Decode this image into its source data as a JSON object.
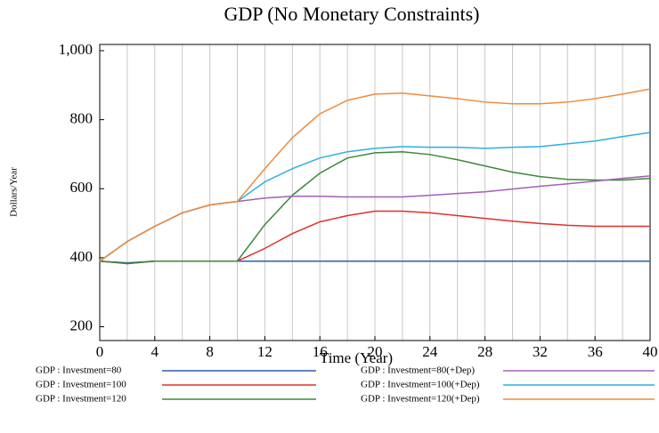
{
  "chart_data": {
    "type": "line",
    "title": "GDP (No Monetary Constraints)",
    "x_label": "Time (Year)",
    "y_label": "Dollars/Year",
    "x": [
      0,
      2,
      4,
      6,
      8,
      10,
      12,
      14,
      16,
      18,
      20,
      22,
      24,
      26,
      28,
      30,
      32,
      34,
      36,
      38,
      40
    ],
    "xlim": [
      0,
      40
    ],
    "xticks": [
      0,
      4,
      8,
      12,
      16,
      20,
      24,
      28,
      32,
      36,
      40
    ],
    "ylim": [
      160,
      1018
    ],
    "yticks": [
      200,
      400,
      600,
      800,
      {
        "value": 1000,
        "label": "1,000"
      }
    ],
    "grid": true,
    "series": [
      {
        "name": "GDP : Investment=80",
        "color": "#2e5fa8",
        "values": [
          390,
          385,
          390,
          390,
          390,
          390,
          390,
          390,
          390,
          390,
          390,
          390,
          390,
          390,
          390,
          390,
          390,
          390,
          390,
          390,
          390
        ]
      },
      {
        "name": "GDP : Investment=100",
        "color": "#e0302b",
        "values": [
          390,
          383,
          390,
          390,
          390,
          390,
          427,
          470,
          504,
          522,
          535,
          535,
          530,
          522,
          514,
          506,
          499,
          494,
          491,
          491,
          491
        ]
      },
      {
        "name": "GDP : Investment=120",
        "color": "#3a8a3a",
        "values": [
          390,
          383,
          390,
          390,
          390,
          390,
          496,
          581,
          645,
          689,
          704,
          707,
          699,
          684,
          666,
          648,
          635,
          627,
          625,
          625,
          630
        ]
      },
      {
        "name": "GDP : Investment=80(+Dep)",
        "color": "#a35fb5",
        "values": [
          390,
          447,
          491,
          530,
          553,
          563,
          573,
          578,
          578,
          576,
          576,
          576,
          581,
          586,
          591,
          599,
          607,
          614,
          622,
          630,
          637
        ]
      },
      {
        "name": "GDP : Investment=100(+Dep)",
        "color": "#2bb0e0",
        "values": [
          390,
          447,
          491,
          530,
          553,
          563,
          620,
          658,
          689,
          707,
          717,
          722,
          720,
          720,
          717,
          720,
          722,
          730,
          738,
          751,
          763
        ]
      },
      {
        "name": "GDP : Investment=120(+Dep)",
        "color": "#f08a3a",
        "values": [
          390,
          447,
          491,
          530,
          553,
          563,
          658,
          748,
          817,
          856,
          874,
          877,
          869,
          861,
          851,
          846,
          846,
          851,
          861,
          874,
          889
        ]
      }
    ]
  }
}
